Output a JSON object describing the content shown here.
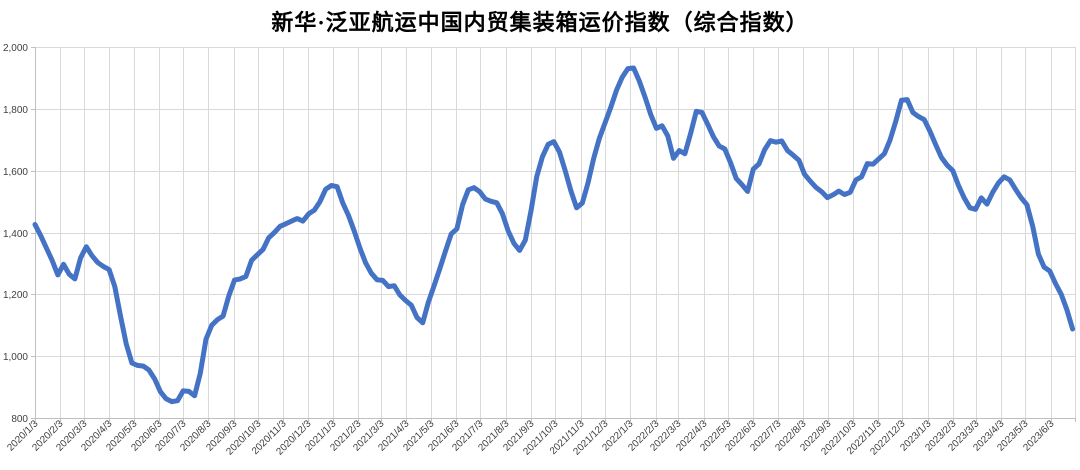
{
  "chart_data": {
    "type": "line",
    "title": "新华·泛亚航运中国内贸集装箱运价指数（综合指数）",
    "xlabel": "",
    "ylabel": "",
    "ylim": [
      800,
      2000
    ],
    "y_step": 200,
    "grid": true,
    "legend_position": "none",
    "line_color": "#4472C4",
    "grid_color": "#d9d9d9",
    "axis_color": "#bfbfbf",
    "tick_label_color": "#404040",
    "y_tick_labels": [
      "800",
      "1,000",
      "1,200",
      "1,400",
      "1,600",
      "1,800",
      "2,000"
    ],
    "x_tick_labels": [
      "2020/1/3",
      "2020/2/3",
      "2020/3/3",
      "2020/4/3",
      "2020/5/3",
      "2020/6/3",
      "2020/7/3",
      "2020/8/3",
      "2020/9/3",
      "2020/10/3",
      "2020/11/3",
      "2020/12/3",
      "2021/1/3",
      "2021/2/3",
      "2021/3/3",
      "2021/4/3",
      "2021/5/3",
      "2021/6/3",
      "2021/7/3",
      "2021/8/3",
      "2021/9/3",
      "2021/10/3",
      "2021/11/3",
      "2021/12/3",
      "2022/1/3",
      "2022/2/3",
      "2022/3/3",
      "2022/4/3",
      "2022/5/3",
      "2022/6/3",
      "2022/7/3",
      "2022/8/3",
      "2022/9/3",
      "2022/10/3",
      "2022/11/3",
      "2022/12/3",
      "2023/1/3",
      "2023/2/3",
      "2023/3/3",
      "2023/4/3",
      "2023/5/3",
      "2023/6/3"
    ],
    "series_start_date": "2020/1/3",
    "series_interval_days": 7,
    "series_values": [
      1426,
      1390,
      1350,
      1310,
      1263,
      1297,
      1265,
      1250,
      1318,
      1354,
      1325,
      1303,
      1290,
      1280,
      1225,
      1130,
      1040,
      978,
      970,
      968,
      955,
      926,
      885,
      862,
      853,
      856,
      888,
      886,
      872,
      945,
      1055,
      1100,
      1118,
      1130,
      1195,
      1246,
      1250,
      1258,
      1310,
      1328,
      1345,
      1383,
      1400,
      1420,
      1428,
      1437,
      1445,
      1437,
      1460,
      1472,
      1500,
      1540,
      1552,
      1548,
      1495,
      1455,
      1405,
      1350,
      1302,
      1268,
      1247,
      1245,
      1225,
      1228,
      1198,
      1180,
      1165,
      1125,
      1108,
      1175,
      1228,
      1283,
      1340,
      1395,
      1412,
      1490,
      1538,
      1545,
      1532,
      1508,
      1501,
      1496,
      1460,
      1405,
      1365,
      1342,
      1375,
      1470,
      1580,
      1645,
      1685,
      1694,
      1660,
      1600,
      1535,
      1480,
      1495,
      1560,
      1640,
      1705,
      1755,
      1805,
      1860,
      1902,
      1930,
      1932,
      1890,
      1838,
      1782,
      1737,
      1745,
      1712,
      1640,
      1665,
      1655,
      1720,
      1792,
      1788,
      1750,
      1710,
      1680,
      1670,
      1626,
      1575,
      1555,
      1533,
      1605,
      1622,
      1668,
      1697,
      1692,
      1696,
      1665,
      1650,
      1634,
      1588,
      1566,
      1546,
      1532,
      1513,
      1522,
      1534,
      1523,
      1530,
      1570,
      1580,
      1623,
      1621,
      1638,
      1655,
      1700,
      1760,
      1828,
      1830,
      1788,
      1775,
      1765,
      1727,
      1684,
      1643,
      1618,
      1600,
      1552,
      1512,
      1480,
      1475,
      1512,
      1492,
      1530,
      1560,
      1580,
      1570,
      1540,
      1512,
      1490,
      1420,
      1330,
      1288,
      1275,
      1235,
      1200,
      1150,
      1088
    ]
  }
}
